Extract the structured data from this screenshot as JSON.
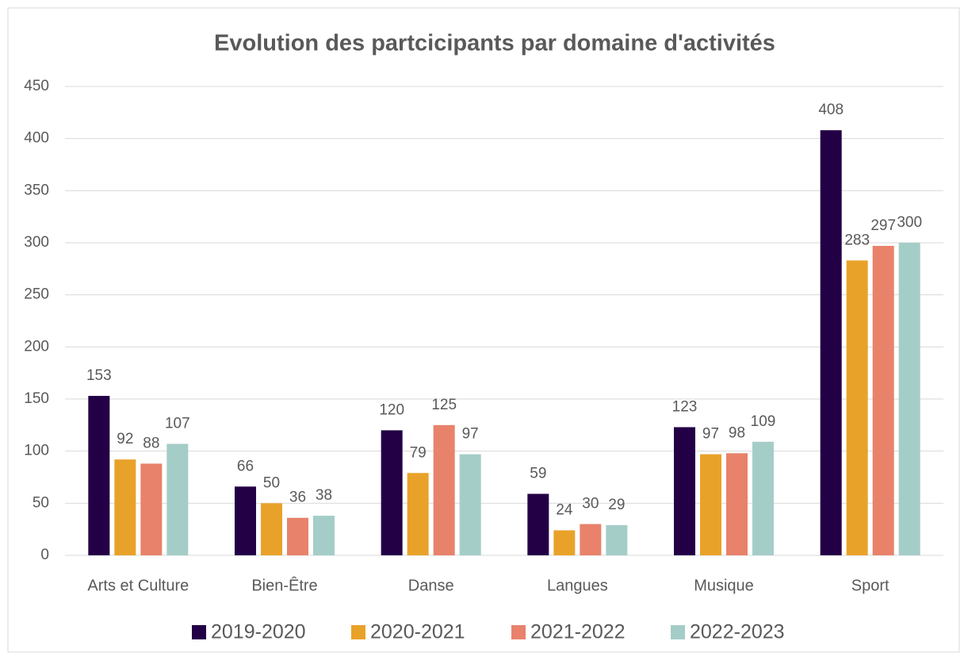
{
  "chart_data": {
    "type": "bar",
    "title": "Evolution des partcicipants par domaine d'activités",
    "categories": [
      "Arts et Culture",
      "Bien-Être",
      "Danse",
      "Langues",
      "Musique",
      "Sport"
    ],
    "series": [
      {
        "name": "2019-2020",
        "color": "#230046",
        "values": [
          153,
          66,
          120,
          59,
          123,
          408
        ]
      },
      {
        "name": "2020-2021",
        "color": "#e9a229",
        "values": [
          92,
          50,
          79,
          24,
          97,
          283
        ]
      },
      {
        "name": "2021-2022",
        "color": "#e8826b",
        "values": [
          88,
          36,
          125,
          30,
          98,
          297
        ]
      },
      {
        "name": "2022-2023",
        "color": "#a5cdc8",
        "values": [
          107,
          38,
          97,
          29,
          109,
          300
        ]
      }
    ],
    "ylim": [
      0,
      450
    ],
    "yticks": [
      0,
      50,
      100,
      150,
      200,
      250,
      300,
      350,
      400,
      450
    ],
    "grid": true
  }
}
